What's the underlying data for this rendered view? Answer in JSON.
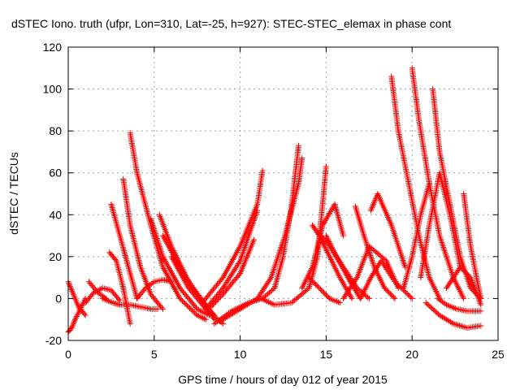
{
  "chart_data": {
    "type": "scatter",
    "title": "dSTEC Iono. truth (ufpr, Lon=310, Lat=-25, h=927): STEC-STEC_elemax in phase cont",
    "xlabel": "GPS time / hours of day 012 of year 2015",
    "ylabel": "dSTEC  / TECUs",
    "xlim": [
      0,
      25
    ],
    "ylim": [
      -20,
      120
    ],
    "xticks": [
      0,
      5,
      10,
      15,
      20,
      25
    ],
    "yticks": [
      -20,
      0,
      20,
      40,
      60,
      80,
      100,
      120
    ],
    "grid": true,
    "marker": "plus",
    "color": "#ff0000",
    "series": [
      {
        "x": [
          0.0,
          0.3,
          0.6,
          1.0
        ],
        "y": [
          8,
          2,
          -4,
          -8
        ]
      },
      {
        "x": [
          0.0,
          0.2,
          0.4,
          0.7,
          1.0
        ],
        "y": [
          -16,
          -14,
          -10,
          -5,
          0
        ]
      },
      {
        "x": [
          1.0,
          1.5,
          2.0,
          2.5,
          3.0
        ],
        "y": [
          -2,
          3,
          5,
          4,
          -1
        ]
      },
      {
        "x": [
          1.2,
          1.7,
          2.2
        ],
        "y": [
          8,
          3,
          0
        ]
      },
      {
        "x": [
          2.4,
          2.8,
          3.2,
          3.6
        ],
        "y": [
          22,
          18,
          5,
          -12
        ]
      },
      {
        "x": [
          2.5,
          3.0,
          3.5,
          4.0
        ],
        "y": [
          45,
          30,
          15,
          0
        ]
      },
      {
        "x": [
          3.2,
          3.6,
          4.2,
          4.8,
          5.5
        ],
        "y": [
          57,
          35,
          15,
          2,
          -5
        ]
      },
      {
        "x": [
          3.6,
          4.0,
          4.8,
          5.5,
          6.5,
          7.5,
          8.0
        ],
        "y": [
          79,
          60,
          35,
          15,
          0,
          -8,
          -10
        ]
      },
      {
        "x": [
          2.0,
          2.6,
          3.0,
          3.6,
          4.2,
          4.8,
          5.2
        ],
        "y": [
          0,
          -2,
          -3,
          -3,
          -4,
          -5,
          -5
        ]
      },
      {
        "x": [
          4.0,
          4.5,
          5.0,
          5.5,
          6.0
        ],
        "y": [
          0,
          5,
          8,
          9,
          8
        ]
      },
      {
        "x": [
          4.8,
          5.5,
          6.5,
          7.5,
          8.2
        ],
        "y": [
          38,
          20,
          5,
          -5,
          -8
        ]
      },
      {
        "x": [
          5.3,
          6.0,
          7.0,
          8.0,
          8.5
        ],
        "y": [
          40,
          25,
          8,
          -3,
          -8
        ]
      },
      {
        "x": [
          5.5,
          6.5,
          7.5,
          8.5
        ],
        "y": [
          30,
          15,
          2,
          -10
        ]
      },
      {
        "x": [
          6.0,
          7.0,
          8.0,
          9.0
        ],
        "y": [
          20,
          5,
          -5,
          -12
        ]
      },
      {
        "x": [
          7.8,
          9.0,
          10.0,
          11.0,
          11.3
        ],
        "y": [
          -2,
          10,
          25,
          45,
          61
        ]
      },
      {
        "x": [
          8.0,
          9.0,
          10.0,
          11.0
        ],
        "y": [
          -5,
          5,
          18,
          42
        ]
      },
      {
        "x": [
          8.5,
          9.5,
          10.5,
          11.3,
          12.0,
          12.5,
          13.0,
          13.4
        ],
        "y": [
          -12,
          -6,
          -2,
          0,
          5,
          20,
          45,
          73
        ]
      },
      {
        "x": [
          8.3,
          9.0,
          10.0,
          10.8
        ],
        "y": [
          -4,
          2,
          12,
          28
        ]
      },
      {
        "x": [
          8.8,
          10.0,
          11.0,
          11.8,
          12.6,
          13.4,
          13.6
        ],
        "y": [
          -11,
          -5,
          0,
          10,
          30,
          55,
          67
        ]
      },
      {
        "x": [
          11.2,
          12.0,
          13.0,
          14.0,
          14.5,
          15.0
        ],
        "y": [
          0,
          -3,
          -2,
          5,
          20,
          63
        ]
      },
      {
        "x": [
          13.6,
          14.2,
          14.8,
          15.5,
          16.0
        ],
        "y": [
          5,
          15,
          35,
          45,
          30
        ]
      },
      {
        "x": [
          14.2,
          14.6,
          15.2,
          15.8,
          16.5
        ],
        "y": [
          35,
          30,
          20,
          10,
          0
        ]
      },
      {
        "x": [
          14.5,
          15.2,
          16.0,
          16.8,
          17.5
        ],
        "y": [
          32,
          25,
          15,
          5,
          0
        ]
      },
      {
        "x": [
          15.0,
          15.6,
          16.4,
          17.0
        ],
        "y": [
          30,
          20,
          8,
          0
        ]
      },
      {
        "x": [
          14.0,
          14.6,
          15.2,
          15.8
        ],
        "y": [
          10,
          5,
          0,
          -2
        ]
      },
      {
        "x": [
          16.0,
          16.8,
          17.5,
          18.5,
          19.2
        ],
        "y": [
          0,
          10,
          25,
          18,
          5
        ]
      },
      {
        "x": [
          16.7,
          17.2,
          17.8,
          18.4,
          19.0
        ],
        "y": [
          44,
          30,
          15,
          5,
          0
        ]
      },
      {
        "x": [
          17.0,
          17.6,
          18.2,
          19.0,
          20.0
        ],
        "y": [
          0,
          10,
          18,
          8,
          0
        ]
      },
      {
        "x": [
          17.6,
          18.0,
          18.8,
          19.6
        ],
        "y": [
          42,
          50,
          35,
          15
        ]
      },
      {
        "x": [
          18.8,
          19.2,
          19.8,
          20.4,
          21.0,
          21.6
        ],
        "y": [
          106,
          80,
          55,
          30,
          10,
          0
        ]
      },
      {
        "x": [
          20.0,
          20.4,
          21.0,
          21.6,
          22.4,
          23.0
        ],
        "y": [
          110,
          85,
          55,
          30,
          10,
          0
        ]
      },
      {
        "x": [
          20.5,
          21.0,
          21.6,
          22.2,
          22.8
        ],
        "y": [
          10,
          35,
          60,
          40,
          15
        ]
      },
      {
        "x": [
          21.2,
          21.6,
          22.2,
          22.8,
          23.4,
          24.0
        ],
        "y": [
          100,
          70,
          45,
          20,
          5,
          0
        ]
      },
      {
        "x": [
          19.5,
          20.0,
          20.5,
          21.0
        ],
        "y": [
          5,
          20,
          40,
          55
        ]
      },
      {
        "x": [
          20.8,
          21.6,
          22.4,
          23.2,
          24.0
        ],
        "y": [
          -2,
          -8,
          -12,
          -14,
          -13
        ]
      },
      {
        "x": [
          21.5,
          22.0,
          22.6,
          23.2,
          24.0
        ],
        "y": [
          0,
          -3,
          -5,
          -6,
          -6
        ]
      },
      {
        "x": [
          22.0,
          22.8,
          23.4,
          24.0
        ],
        "y": [
          5,
          15,
          10,
          -3
        ]
      },
      {
        "x": [
          23.0,
          23.4,
          23.8,
          24.0
        ],
        "y": [
          50,
          25,
          8,
          0
        ]
      }
    ]
  }
}
